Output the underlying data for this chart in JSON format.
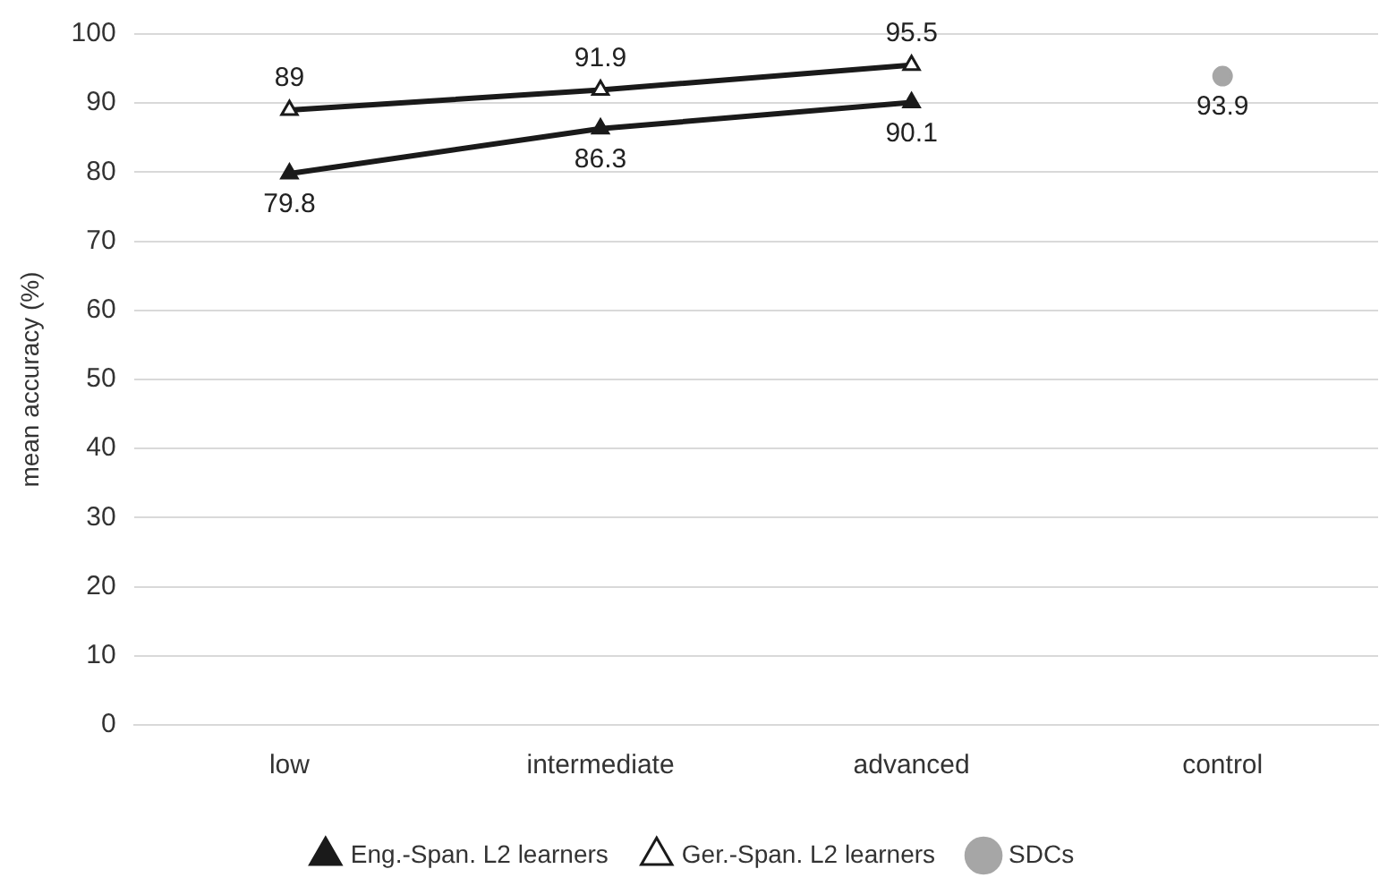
{
  "chart_data": {
    "type": "line",
    "ylabel": "mean accuracy (%)",
    "categories": [
      "low",
      "intermediate",
      "advanced",
      "control"
    ],
    "ylim": [
      0,
      100
    ],
    "yticks": [
      0,
      10,
      20,
      30,
      40,
      50,
      60,
      70,
      80,
      90,
      100
    ],
    "grid": "y",
    "legend": "bottom",
    "data_labels": true,
    "marker": "triangle",
    "line_style": "solid",
    "series": [
      {
        "name": "Eng.-Span. L2 learners",
        "color": "#1a1a1a",
        "values": [
          79.8,
          86.3,
          90.1,
          null
        ]
      },
      {
        "name": "Ger.-Span. L2 learners",
        "color": "#1a1a1a",
        "values": [
          89,
          91.9,
          95.5,
          null
        ]
      },
      {
        "name": "SDCs",
        "color": "#a6a6a6",
        "marker": "circle",
        "values": [
          null,
          null,
          null,
          93.9
        ]
      }
    ]
  }
}
